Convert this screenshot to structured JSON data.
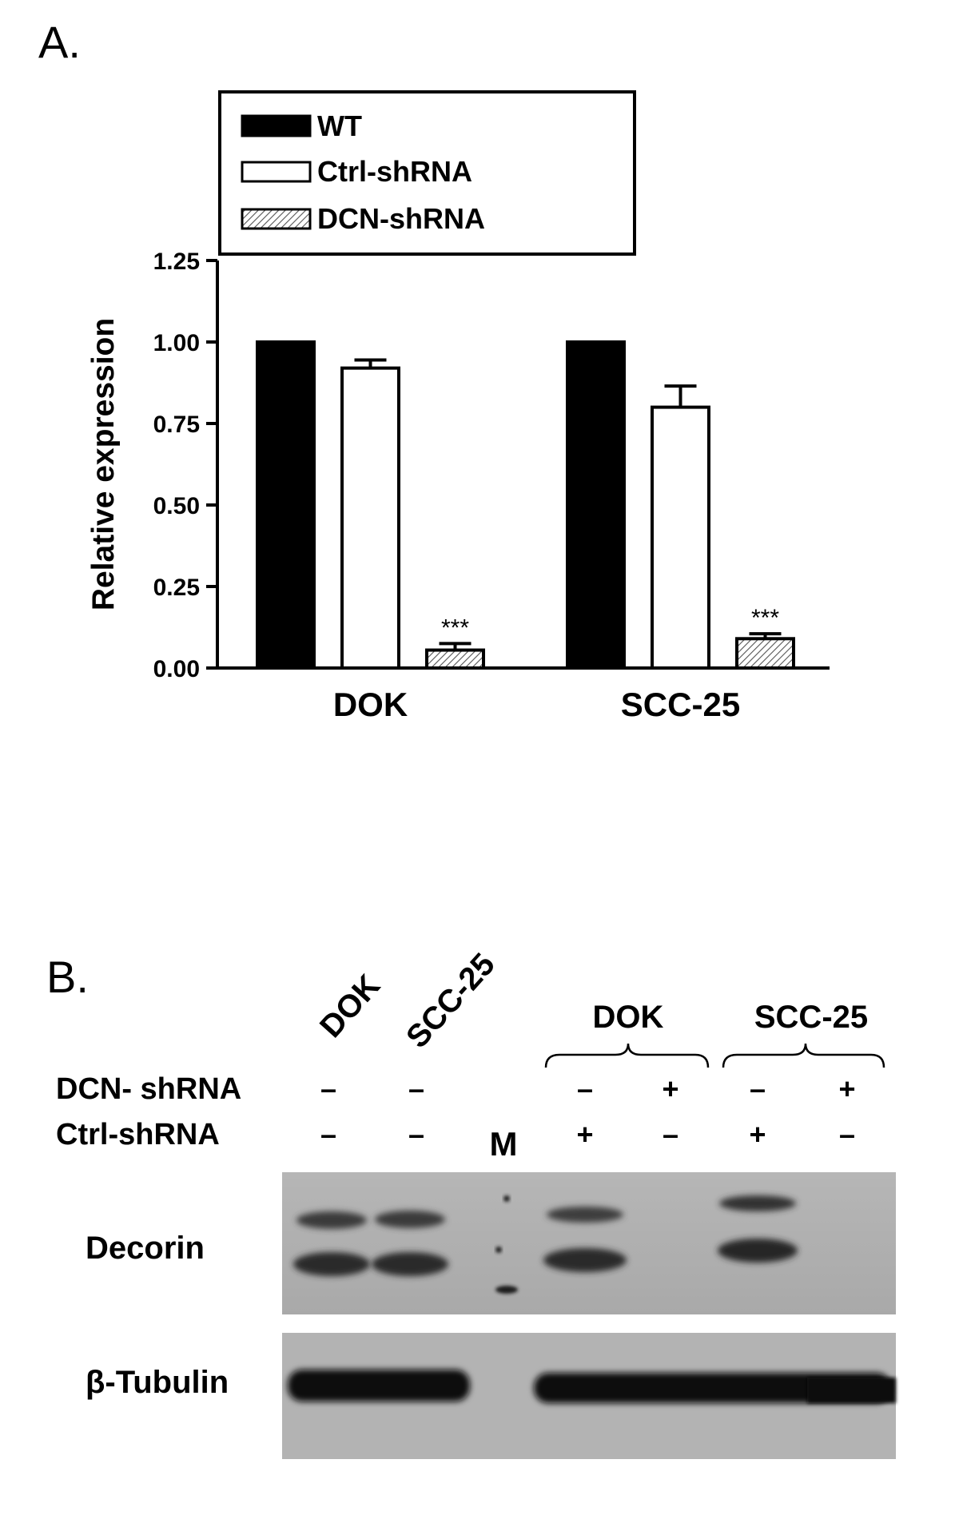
{
  "panel_a": {
    "label": "A.",
    "chart_data": {
      "type": "bar",
      "categories": [
        "DOK",
        "SCC-25"
      ],
      "series": [
        {
          "name": "WT",
          "values": [
            1.0,
            1.0
          ],
          "errors": [
            0,
            0
          ],
          "color": "#000000",
          "fill": "solid"
        },
        {
          "name": "Ctrl-shRNA",
          "values": [
            0.92,
            0.8
          ],
          "errors": [
            0.025,
            0.065
          ],
          "color": "#ffffff",
          "fill": "solid"
        },
        {
          "name": "DCN-shRNA",
          "values": [
            0.055,
            0.09
          ],
          "errors": [
            0.02,
            0.015
          ],
          "color": "#ffffff",
          "fill": "hatched"
        }
      ],
      "significance": [
        "***",
        "***"
      ],
      "ylabel": "Relative expression",
      "xlabel": "",
      "title": "",
      "ylim": [
        0,
        1.25
      ],
      "yticks": [
        "0.00",
        "0.25",
        "0.50",
        "0.75",
        "1.00",
        "1.25"
      ],
      "legend_position": "top"
    }
  },
  "panel_b": {
    "label": "B.",
    "lane_headers": [
      "DOK",
      "SCC-25"
    ],
    "group_headers": [
      "DOK",
      "SCC-25"
    ],
    "rows": [
      {
        "label": "DCN- shRNA",
        "values": [
          "–",
          "–",
          "",
          "–",
          "+",
          "–",
          "+"
        ]
      },
      {
        "label": "Ctrl-shRNA",
        "values": [
          "–",
          "–",
          "M",
          "+",
          "–",
          "+",
          "–"
        ]
      }
    ],
    "blots": [
      {
        "label": "Decorin"
      },
      {
        "label": "β-Tubulin"
      }
    ]
  }
}
